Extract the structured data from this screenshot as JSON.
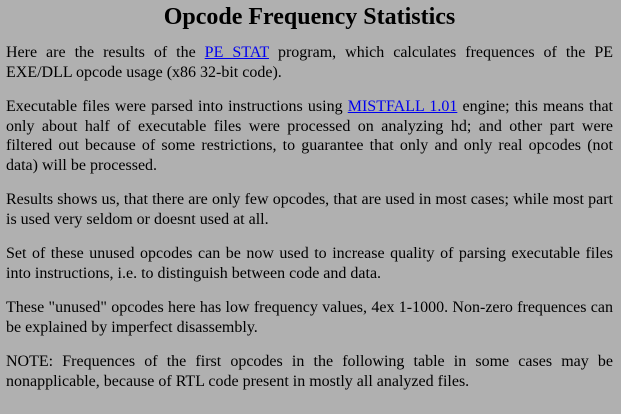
{
  "page": {
    "title": "Opcode Frequency Statistics",
    "p1": {
      "before": "Here are the results of the ",
      "link": "PE STAT",
      "after": " program, which calculates frequences of the PE EXE/DLL opcode usage (x86 32-bit code)."
    },
    "p2": {
      "before": "Executable files were parsed into instructions using ",
      "link": "MISTFALL 1.01",
      "after": " engine; this means that only about half of executable files were processed on analyzing hd; and other part were filtered out because of some restrictions, to guarantee that only and only real opcodes (not data) will be processed."
    },
    "p3": "Results shows us, that there are only few opcodes, that are used in most cases; while most part is used very seldom or doesnt used at all.",
    "p4": "Set of these unused opcodes can be now used to increase quality of parsing executable files into instructions, i.e. to distinguish between code and data.",
    "p5": "These \"unused\" opcodes here has low frequency values, 4ex 1-1000. Non-zero frequences can be explained by imperfect disassembly.",
    "p6": "NOTE: Frequences of the first opcodes in the following table in some cases may be nonapplicable, because of RTL code present in mostly all analyzed files."
  }
}
